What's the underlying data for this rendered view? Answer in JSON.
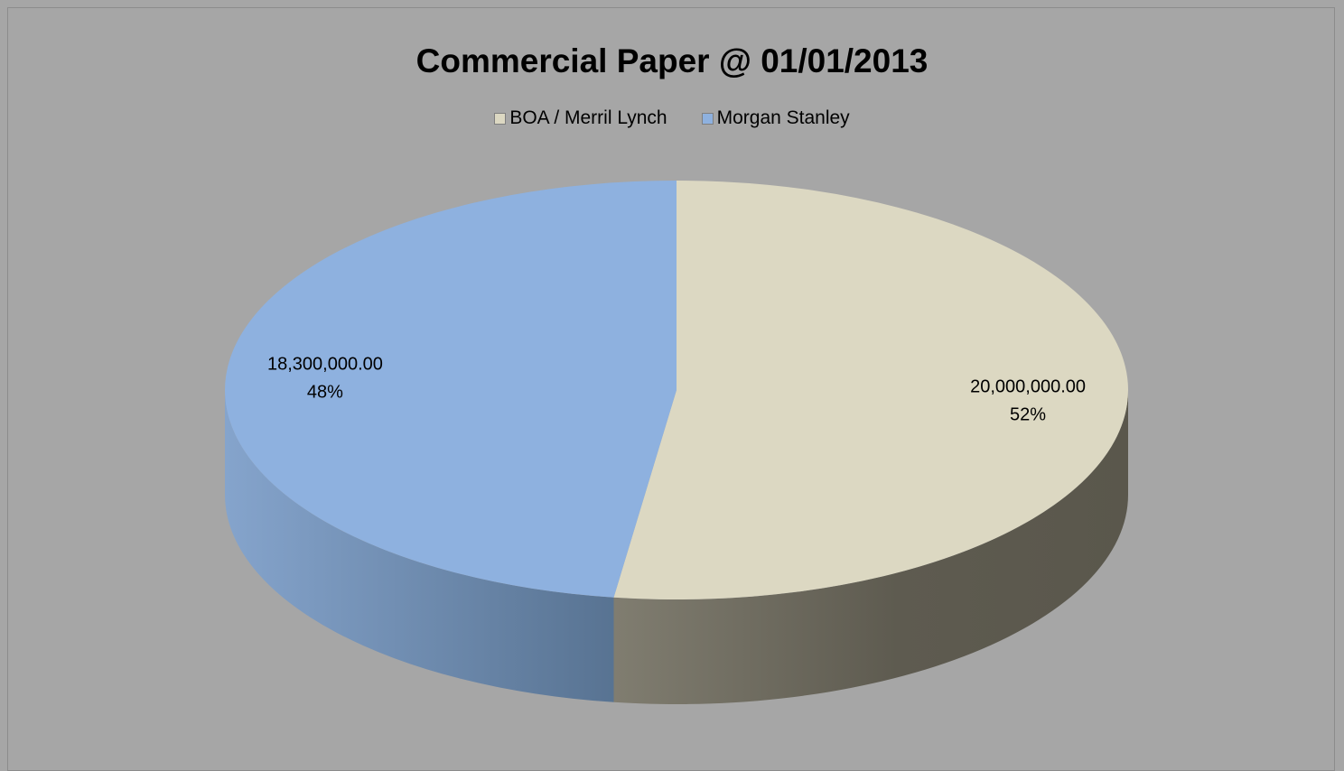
{
  "chart_data": {
    "type": "pie",
    "style": "3d",
    "title": "Commercial Paper @ 01/01/2013",
    "legend_position": "top",
    "categories": [
      "BOA / Merril Lynch",
      "Morgan Stanley"
    ],
    "values": [
      20000000,
      18300000
    ],
    "value_labels": [
      "20,000,000.00",
      "18,300,000.00"
    ],
    "percent_labels": [
      "52%",
      "48%"
    ],
    "colors": [
      "#dcd8c2",
      "#8eb1df"
    ]
  }
}
